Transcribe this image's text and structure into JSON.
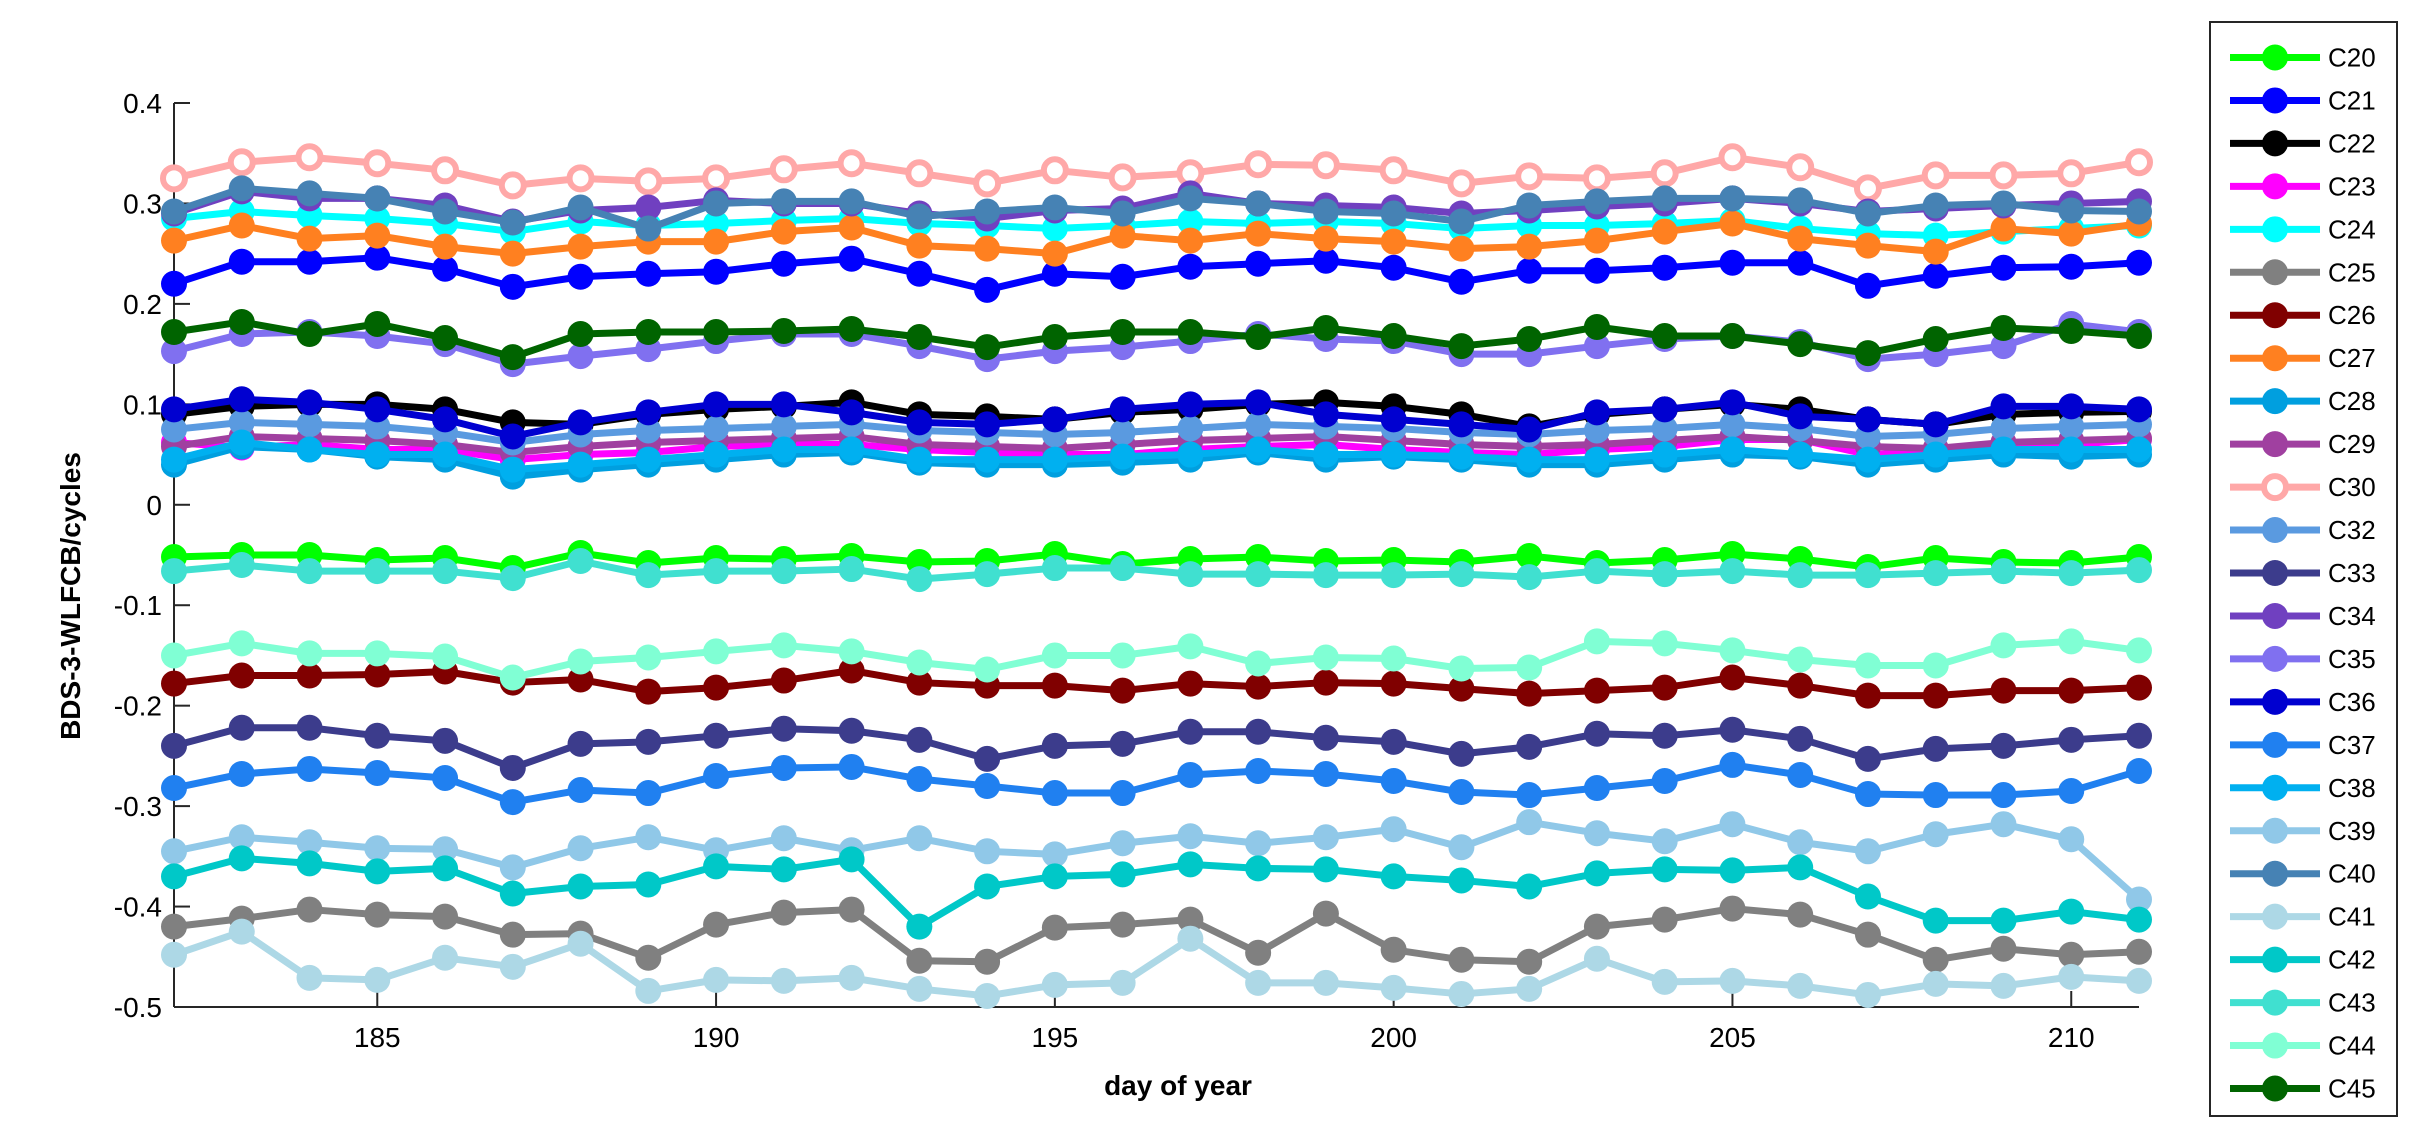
{
  "chart_data": {
    "type": "line",
    "title": "",
    "xlabel": "day of year",
    "ylabel": "BDS-3-WLFCB/cycles",
    "xlim": [
      182,
      211
    ],
    "ylim": [
      -0.5,
      0.4
    ],
    "xticks": [
      185,
      190,
      195,
      200,
      205,
      210
    ],
    "xtick_labels": [
      "185",
      "190",
      "195",
      "200",
      "205",
      "210"
    ],
    "yticks": [
      -0.5,
      -0.4,
      -0.3,
      -0.2,
      -0.1,
      0,
      0.1,
      0.2,
      0.3,
      0.4
    ],
    "ytick_labels": [
      "-0.5",
      "-0.4",
      "-0.3",
      "-0.2",
      "-0.1",
      "0",
      "0.1",
      "0.2",
      "0.3",
      "0.4"
    ],
    "grid": false,
    "legend_position": "outside-right",
    "x": [
      182,
      183,
      184,
      185,
      186,
      187,
      188,
      189,
      190,
      191,
      192,
      193,
      194,
      195,
      196,
      197,
      198,
      199,
      200,
      201,
      202,
      203,
      204,
      205,
      206,
      207,
      208,
      209,
      210,
      211
    ],
    "series": [
      {
        "name": "C20",
        "color": "#00ff00",
        "hollow": false,
        "values": [
          -0.052,
          -0.05,
          -0.05,
          -0.055,
          -0.053,
          -0.063,
          -0.048,
          -0.058,
          -0.053,
          -0.054,
          -0.051,
          -0.057,
          -0.056,
          -0.049,
          -0.059,
          -0.054,
          -0.052,
          -0.056,
          -0.055,
          -0.057,
          -0.051,
          -0.058,
          -0.055,
          -0.049,
          -0.054,
          -0.062,
          -0.053,
          -0.057,
          -0.058,
          -0.052
        ]
      },
      {
        "name": "C21",
        "color": "#0000ff",
        "hollow": false,
        "values": [
          0.22,
          0.242,
          0.242,
          0.246,
          0.235,
          0.217,
          0.227,
          0.23,
          0.232,
          0.24,
          0.245,
          0.23,
          0.214,
          0.23,
          0.227,
          0.237,
          0.24,
          0.243,
          0.236,
          0.222,
          0.233,
          0.233,
          0.236,
          0.241,
          0.241,
          0.218,
          0.228,
          0.236,
          0.237,
          0.241
        ]
      },
      {
        "name": "C22",
        "color": "#000000",
        "hollow": false,
        "values": [
          0.09,
          0.098,
          0.1,
          0.1,
          0.095,
          0.082,
          0.08,
          0.09,
          0.095,
          0.098,
          0.102,
          0.09,
          0.088,
          0.085,
          0.092,
          0.095,
          0.1,
          0.102,
          0.098,
          0.09,
          0.078,
          0.09,
          0.095,
          0.1,
          0.095,
          0.085,
          0.08,
          0.09,
          0.092,
          0.093
        ]
      },
      {
        "name": "C23",
        "color": "#ff00ff",
        "hollow": false,
        "values": [
          0.062,
          0.057,
          0.06,
          0.055,
          0.055,
          0.045,
          0.05,
          0.052,
          0.058,
          0.06,
          0.06,
          0.055,
          0.052,
          0.05,
          0.05,
          0.055,
          0.058,
          0.06,
          0.055,
          0.052,
          0.05,
          0.055,
          0.058,
          0.065,
          0.065,
          0.05,
          0.052,
          0.058,
          0.06,
          0.065
        ]
      },
      {
        "name": "C24",
        "color": "#00ffff",
        "hollow": false,
        "values": [
          0.285,
          0.292,
          0.288,
          0.285,
          0.28,
          0.272,
          0.282,
          0.278,
          0.28,
          0.283,
          0.285,
          0.28,
          0.278,
          0.275,
          0.278,
          0.282,
          0.28,
          0.282,
          0.28,
          0.275,
          0.278,
          0.278,
          0.28,
          0.283,
          0.275,
          0.27,
          0.268,
          0.272,
          0.275,
          0.278
        ]
      },
      {
        "name": "C25",
        "color": "#808080",
        "hollow": false,
        "values": [
          -0.42,
          -0.412,
          -0.403,
          -0.408,
          -0.41,
          -0.428,
          -0.427,
          -0.451,
          -0.418,
          -0.406,
          -0.403,
          -0.454,
          -0.455,
          -0.421,
          -0.418,
          -0.413,
          -0.446,
          -0.407,
          -0.443,
          -0.453,
          -0.455,
          -0.42,
          -0.413,
          -0.402,
          -0.408,
          -0.428,
          -0.453,
          -0.442,
          -0.448,
          -0.445
        ]
      },
      {
        "name": "C26",
        "color": "#800000",
        "hollow": false,
        "values": [
          -0.178,
          -0.17,
          -0.17,
          -0.169,
          -0.166,
          -0.177,
          -0.174,
          -0.186,
          -0.182,
          -0.175,
          -0.165,
          -0.177,
          -0.18,
          -0.18,
          -0.185,
          -0.178,
          -0.181,
          -0.177,
          -0.178,
          -0.183,
          -0.188,
          -0.185,
          -0.182,
          -0.172,
          -0.18,
          -0.19,
          -0.19,
          -0.185,
          -0.185,
          -0.182
        ]
      },
      {
        "name": "C27",
        "color": "#ff8020",
        "hollow": false,
        "values": [
          0.263,
          0.278,
          0.265,
          0.268,
          0.257,
          0.25,
          0.257,
          0.262,
          0.262,
          0.272,
          0.276,
          0.258,
          0.255,
          0.25,
          0.268,
          0.263,
          0.27,
          0.265,
          0.262,
          0.255,
          0.257,
          0.263,
          0.272,
          0.28,
          0.265,
          0.258,
          0.252,
          0.275,
          0.27,
          0.28
        ]
      },
      {
        "name": "C28",
        "color": "#009fdf",
        "hollow": false,
        "values": [
          0.04,
          0.058,
          0.055,
          0.048,
          0.045,
          0.028,
          0.035,
          0.04,
          0.045,
          0.05,
          0.052,
          0.042,
          0.04,
          0.04,
          0.042,
          0.045,
          0.052,
          0.045,
          0.048,
          0.045,
          0.04,
          0.04,
          0.045,
          0.05,
          0.048,
          0.04,
          0.045,
          0.05,
          0.048,
          0.05
        ]
      },
      {
        "name": "C29",
        "color": "#a040a0",
        "hollow": false,
        "values": [
          0.058,
          0.068,
          0.066,
          0.064,
          0.06,
          0.052,
          0.058,
          0.062,
          0.064,
          0.066,
          0.068,
          0.06,
          0.058,
          0.056,
          0.06,
          0.064,
          0.066,
          0.068,
          0.064,
          0.06,
          0.058,
          0.06,
          0.064,
          0.068,
          0.064,
          0.058,
          0.056,
          0.062,
          0.064,
          0.066
        ]
      },
      {
        "name": "C30",
        "color": "#ffa8a8",
        "hollow": true,
        "values": [
          0.325,
          0.341,
          0.346,
          0.34,
          0.333,
          0.318,
          0.325,
          0.322,
          0.325,
          0.334,
          0.34,
          0.33,
          0.32,
          0.333,
          0.326,
          0.33,
          0.339,
          0.338,
          0.333,
          0.32,
          0.327,
          0.325,
          0.33,
          0.346,
          0.336,
          0.315,
          0.328,
          0.328,
          0.33,
          0.341
        ]
      },
      {
        "name": "C32",
        "color": "#5a9ae0",
        "hollow": false,
        "values": [
          0.075,
          0.082,
          0.08,
          0.078,
          0.072,
          0.062,
          0.07,
          0.074,
          0.076,
          0.078,
          0.08,
          0.074,
          0.072,
          0.07,
          0.072,
          0.076,
          0.08,
          0.078,
          0.076,
          0.072,
          0.07,
          0.074,
          0.076,
          0.08,
          0.076,
          0.068,
          0.07,
          0.076,
          0.078,
          0.08
        ]
      },
      {
        "name": "C33",
        "color": "#3c3c8c",
        "hollow": false,
        "values": [
          -0.24,
          -0.222,
          -0.222,
          -0.23,
          -0.235,
          -0.262,
          -0.238,
          -0.236,
          -0.23,
          -0.223,
          -0.225,
          -0.234,
          -0.253,
          -0.24,
          -0.238,
          -0.226,
          -0.226,
          -0.232,
          -0.236,
          -0.248,
          -0.241,
          -0.228,
          -0.23,
          -0.224,
          -0.233,
          -0.253,
          -0.243,
          -0.24,
          -0.234,
          -0.23
        ]
      },
      {
        "name": "C34",
        "color": "#7040c0",
        "hollow": false,
        "values": [
          0.29,
          0.312,
          0.305,
          0.305,
          0.298,
          0.282,
          0.293,
          0.296,
          0.303,
          0.3,
          0.3,
          0.29,
          0.285,
          0.293,
          0.295,
          0.31,
          0.3,
          0.298,
          0.296,
          0.29,
          0.293,
          0.297,
          0.3,
          0.305,
          0.3,
          0.292,
          0.295,
          0.298,
          0.3,
          0.302
        ]
      },
      {
        "name": "C35",
        "color": "#8070f0",
        "hollow": false,
        "values": [
          0.153,
          0.17,
          0.172,
          0.168,
          0.16,
          0.14,
          0.148,
          0.155,
          0.163,
          0.17,
          0.17,
          0.158,
          0.145,
          0.153,
          0.157,
          0.163,
          0.17,
          0.165,
          0.163,
          0.15,
          0.15,
          0.158,
          0.165,
          0.168,
          0.162,
          0.145,
          0.15,
          0.158,
          0.18,
          0.172
        ]
      },
      {
        "name": "C36",
        "color": "#0000d0",
        "hollow": false,
        "values": [
          0.095,
          0.105,
          0.102,
          0.095,
          0.085,
          0.068,
          0.082,
          0.092,
          0.1,
          0.1,
          0.092,
          0.082,
          0.08,
          0.085,
          0.095,
          0.1,
          0.102,
          0.09,
          0.085,
          0.08,
          0.075,
          0.092,
          0.095,
          0.102,
          0.088,
          0.085,
          0.08,
          0.098,
          0.098,
          0.095
        ]
      },
      {
        "name": "C37",
        "color": "#2080f0",
        "hollow": false,
        "values": [
          -0.282,
          -0.268,
          -0.263,
          -0.267,
          -0.272,
          -0.296,
          -0.284,
          -0.287,
          -0.27,
          -0.262,
          -0.261,
          -0.273,
          -0.28,
          -0.287,
          -0.287,
          -0.269,
          -0.265,
          -0.268,
          -0.275,
          -0.286,
          -0.289,
          -0.282,
          -0.275,
          -0.259,
          -0.269,
          -0.288,
          -0.289,
          -0.289,
          -0.285,
          -0.265
        ]
      },
      {
        "name": "C38",
        "color": "#00b0f0",
        "hollow": false,
        "values": [
          0.045,
          0.062,
          0.055,
          0.05,
          0.05,
          0.035,
          0.04,
          0.045,
          0.05,
          0.055,
          0.055,
          0.045,
          0.045,
          0.045,
          0.048,
          0.05,
          0.055,
          0.05,
          0.05,
          0.048,
          0.045,
          0.045,
          0.05,
          0.055,
          0.05,
          0.045,
          0.05,
          0.055,
          0.055,
          0.055
        ]
      },
      {
        "name": "C39",
        "color": "#90c8e8",
        "hollow": false,
        "values": [
          -0.345,
          -0.331,
          -0.336,
          -0.342,
          -0.343,
          -0.361,
          -0.342,
          -0.331,
          -0.344,
          -0.332,
          -0.344,
          -0.332,
          -0.345,
          -0.348,
          -0.337,
          -0.33,
          -0.337,
          -0.331,
          -0.323,
          -0.341,
          -0.316,
          -0.327,
          -0.335,
          -0.318,
          -0.336,
          -0.345,
          -0.328,
          -0.318,
          -0.333,
          -0.393
        ]
      },
      {
        "name": "C40",
        "color": "#4682b4",
        "hollow": false,
        "values": [
          0.292,
          0.315,
          0.31,
          0.305,
          0.292,
          0.281,
          0.296,
          0.275,
          0.3,
          0.302,
          0.302,
          0.287,
          0.292,
          0.296,
          0.29,
          0.305,
          0.3,
          0.292,
          0.29,
          0.282,
          0.298,
          0.302,
          0.305,
          0.305,
          0.303,
          0.29,
          0.298,
          0.3,
          0.293,
          0.292
        ]
      },
      {
        "name": "C41",
        "color": "#add8e6",
        "hollow": false,
        "values": [
          -0.448,
          -0.425,
          -0.471,
          -0.473,
          -0.451,
          -0.46,
          -0.437,
          -0.484,
          -0.473,
          -0.474,
          -0.471,
          -0.482,
          -0.489,
          -0.478,
          -0.476,
          -0.432,
          -0.476,
          -0.476,
          -0.481,
          -0.487,
          -0.482,
          -0.452,
          -0.475,
          -0.474,
          -0.479,
          -0.488,
          -0.477,
          -0.479,
          -0.47,
          -0.474
        ]
      },
      {
        "name": "C42",
        "color": "#00c8c8",
        "hollow": false,
        "values": [
          -0.37,
          -0.352,
          -0.357,
          -0.365,
          -0.362,
          -0.387,
          -0.38,
          -0.378,
          -0.36,
          -0.363,
          -0.353,
          -0.42,
          -0.38,
          -0.37,
          -0.368,
          -0.358,
          -0.362,
          -0.363,
          -0.37,
          -0.374,
          -0.38,
          -0.367,
          -0.363,
          -0.364,
          -0.361,
          -0.39,
          -0.414,
          -0.414,
          -0.405,
          -0.413
        ]
      },
      {
        "name": "C43",
        "color": "#40e0d0",
        "hollow": false,
        "values": [
          -0.066,
          -0.06,
          -0.066,
          -0.066,
          -0.066,
          -0.073,
          -0.056,
          -0.07,
          -0.066,
          -0.066,
          -0.064,
          -0.074,
          -0.069,
          -0.063,
          -0.063,
          -0.069,
          -0.069,
          -0.07,
          -0.07,
          -0.069,
          -0.072,
          -0.066,
          -0.069,
          -0.066,
          -0.07,
          -0.07,
          -0.068,
          -0.066,
          -0.068,
          -0.065
        ]
      },
      {
        "name": "C44",
        "color": "#80ffd4",
        "hollow": false,
        "values": [
          -0.15,
          -0.138,
          -0.148,
          -0.148,
          -0.151,
          -0.172,
          -0.156,
          -0.152,
          -0.146,
          -0.14,
          -0.146,
          -0.157,
          -0.164,
          -0.15,
          -0.15,
          -0.141,
          -0.158,
          -0.152,
          -0.153,
          -0.163,
          -0.162,
          -0.136,
          -0.138,
          -0.145,
          -0.154,
          -0.16,
          -0.16,
          -0.14,
          -0.136,
          -0.145
        ]
      },
      {
        "name": "C45",
        "color": "#006400",
        "hollow": false,
        "values": [
          0.172,
          0.182,
          0.17,
          0.18,
          0.166,
          0.147,
          0.17,
          0.172,
          0.172,
          0.173,
          0.175,
          0.167,
          0.157,
          0.167,
          0.172,
          0.172,
          0.167,
          0.176,
          0.168,
          0.158,
          0.165,
          0.177,
          0.168,
          0.168,
          0.16,
          0.151,
          0.165,
          0.176,
          0.173,
          0.168
        ]
      }
    ]
  }
}
